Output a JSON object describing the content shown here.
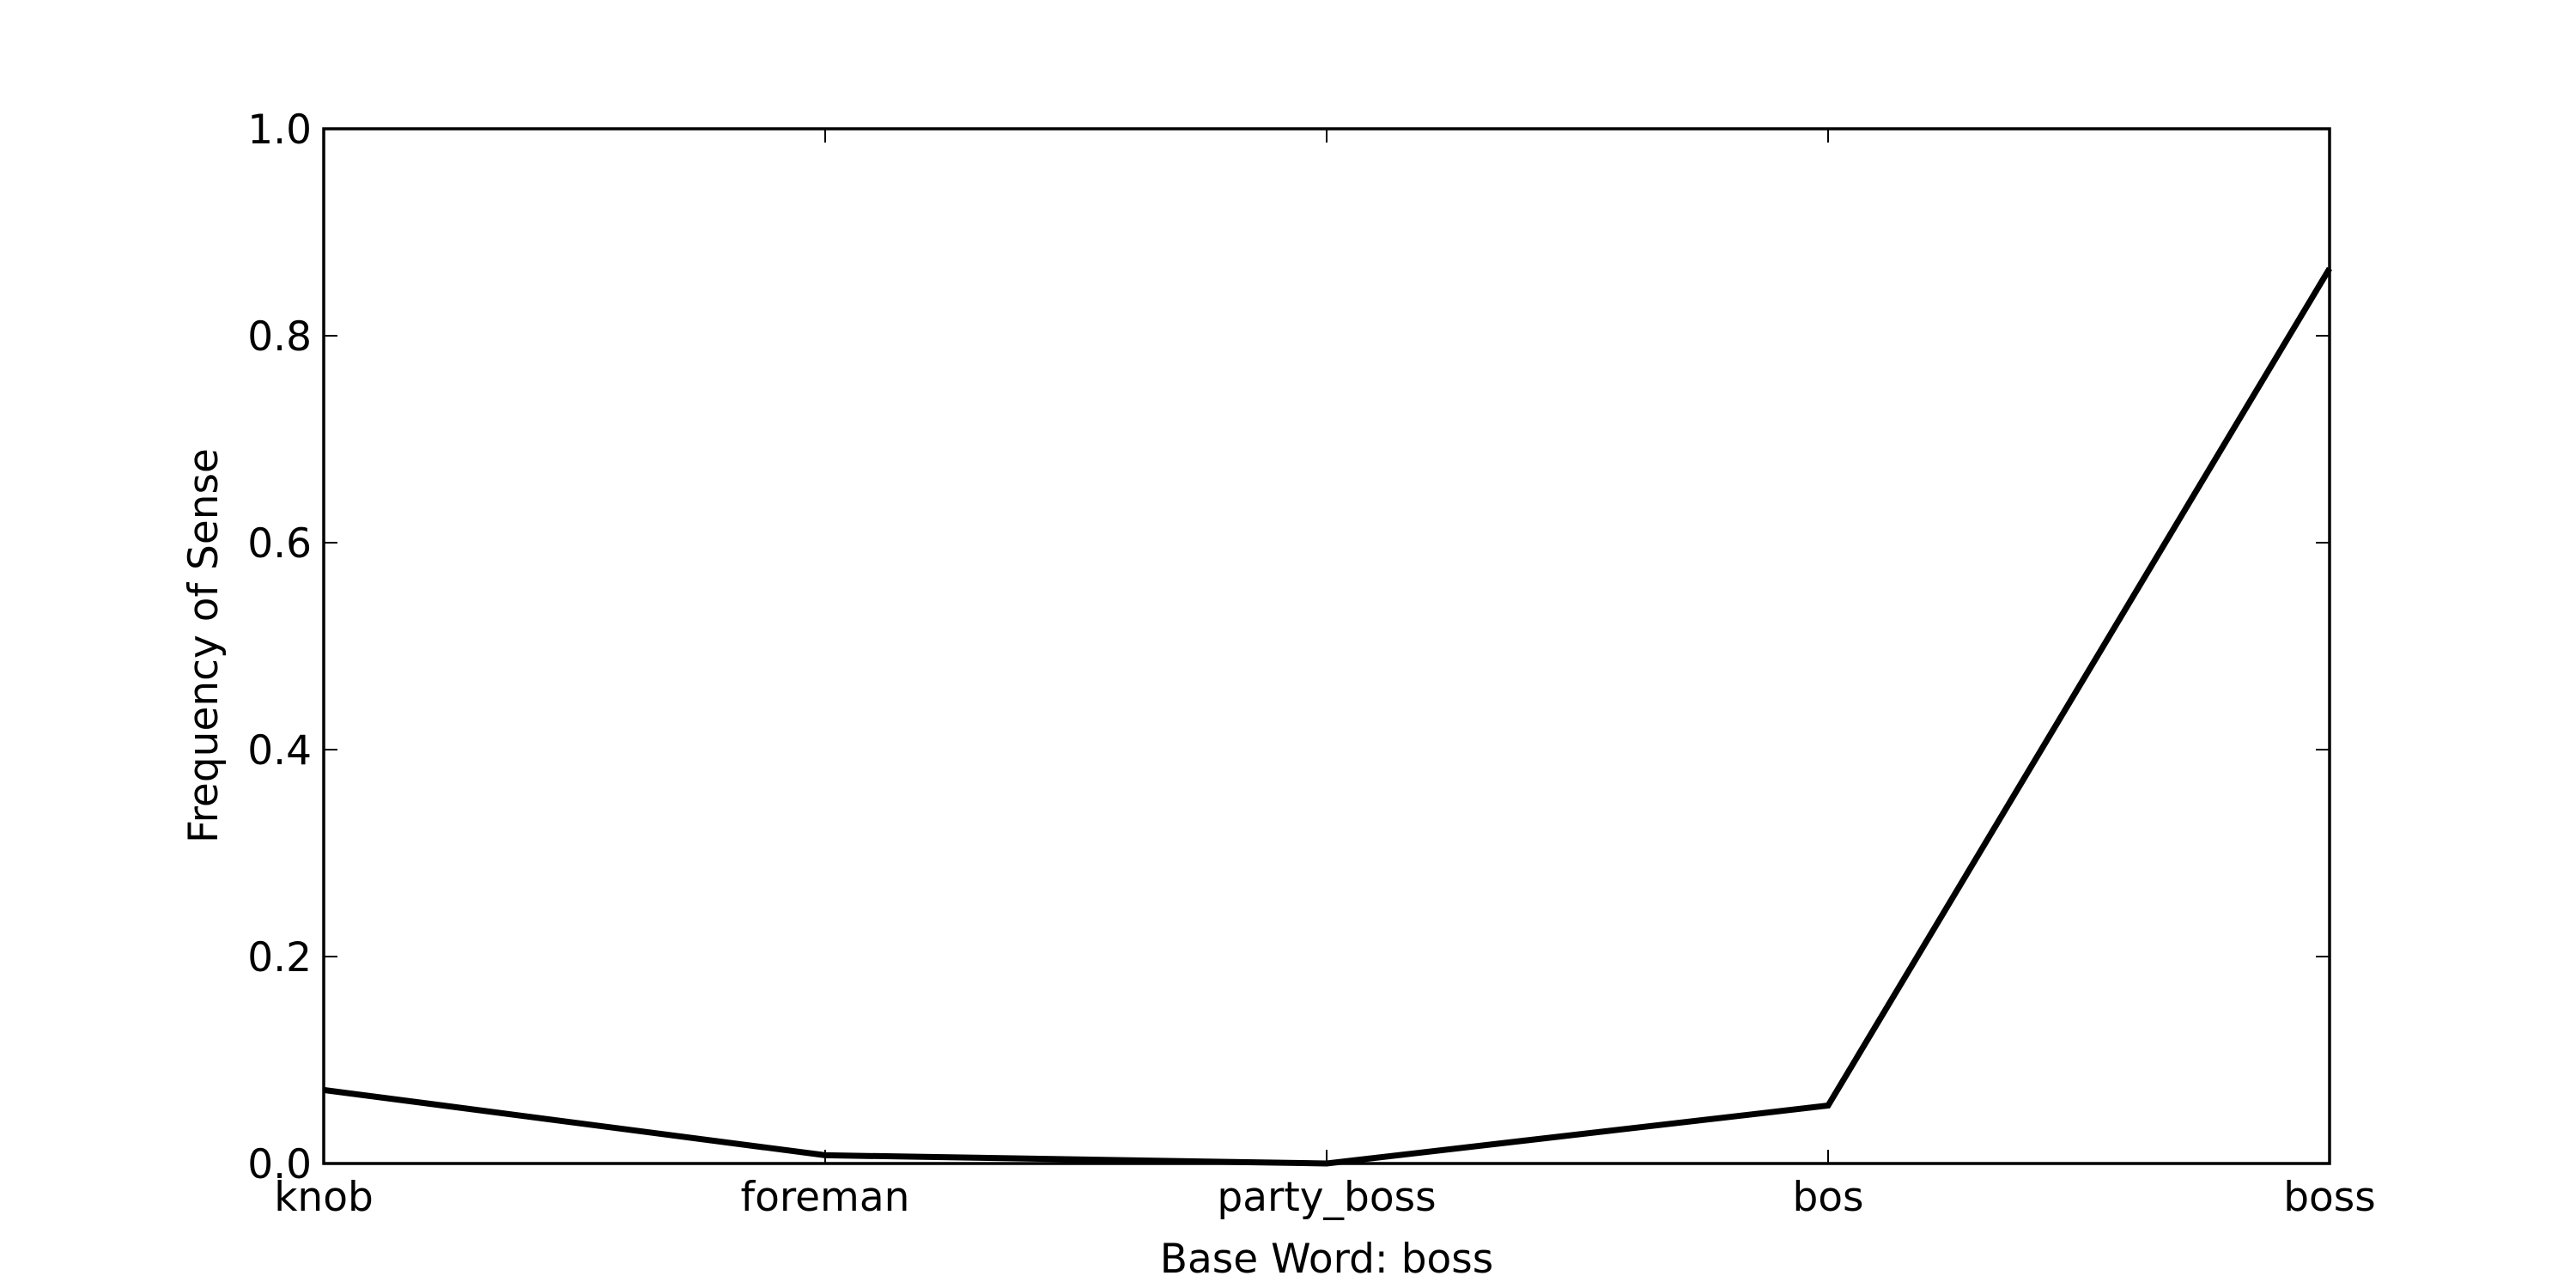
{
  "chart_data": {
    "type": "line",
    "title": "",
    "xlabel": "Base Word: boss",
    "ylabel": "Frequency of Sense",
    "categories": [
      "knob",
      "foreman",
      "party_boss",
      "bos",
      "boss"
    ],
    "series": [
      {
        "values": [
          0.071,
          0.008,
          0.0,
          0.056,
          0.865
        ],
        "color": "#000000"
      }
    ],
    "ylim": [
      0.0,
      1.0
    ],
    "yticks": [
      0.0,
      0.2,
      0.4,
      0.6,
      0.8,
      1.0
    ],
    "ytick_labels": [
      "0.0",
      "0.2",
      "0.4",
      "0.6",
      "0.8",
      "1.0"
    ],
    "grid": false,
    "legend": "none"
  }
}
